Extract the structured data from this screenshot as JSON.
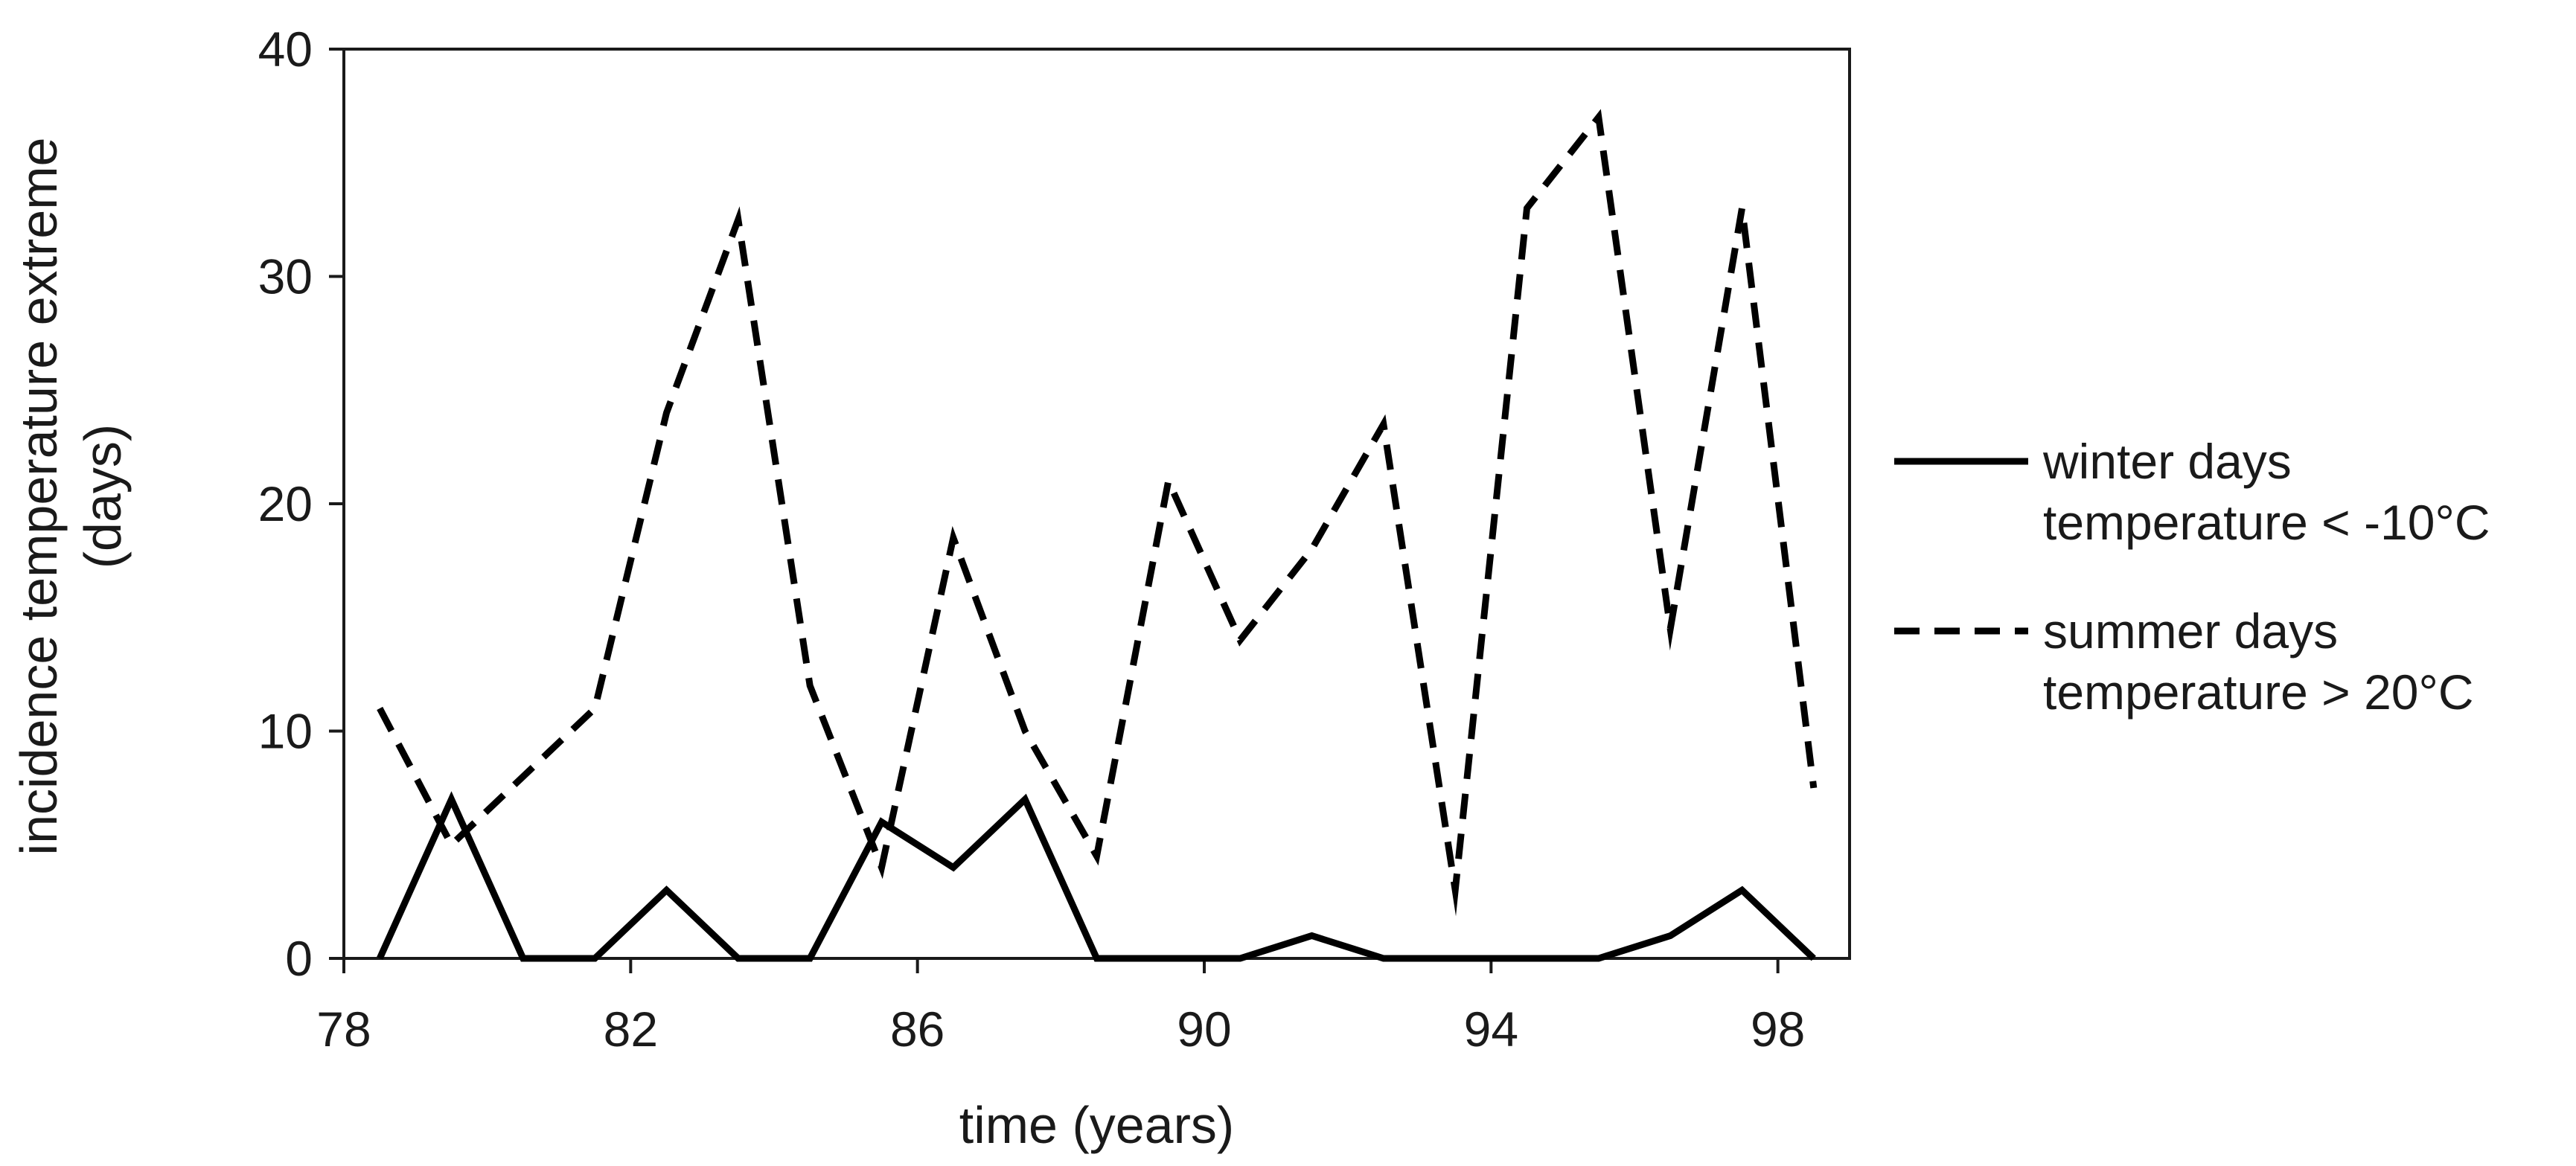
{
  "chart_data": {
    "type": "line",
    "xlabel": "time (years)",
    "ylabel_lines": [
      "incidence temperature extreme",
      "(days)"
    ],
    "xlim": [
      78,
      99
    ],
    "ylim": [
      0,
      40
    ],
    "x_ticks": [
      78,
      82,
      86,
      90,
      94,
      98
    ],
    "y_ticks": [
      0,
      10,
      20,
      30,
      40
    ],
    "grid": false,
    "legend_position": "right",
    "x": [
      78.5,
      79.5,
      80.5,
      81.5,
      82.5,
      83.5,
      84.5,
      85.5,
      86.5,
      87.5,
      88.5,
      89.5,
      90.5,
      91.5,
      92.5,
      93.5,
      94.5,
      95.5,
      96.5,
      97.5,
      98.5
    ],
    "series": [
      {
        "name_lines": [
          "winter days",
          "temperature < -10°C"
        ],
        "style": "solid",
        "color": "#000000",
        "values": [
          0,
          7,
          0,
          0,
          3,
          0,
          0,
          6,
          4,
          7,
          0,
          0,
          0,
          1,
          0,
          0,
          0,
          0,
          1,
          3,
          0
        ]
      },
      {
        "name_lines": [
          "summer days",
          "temperature > 20°C"
        ],
        "style": "dashed",
        "color": "#000000",
        "values": [
          11,
          5,
          8,
          11,
          24,
          32.5,
          12,
          4,
          18.5,
          10,
          4.5,
          21,
          14,
          18,
          23.5,
          3,
          33,
          37,
          14.5,
          33,
          7.5
        ]
      }
    ]
  }
}
